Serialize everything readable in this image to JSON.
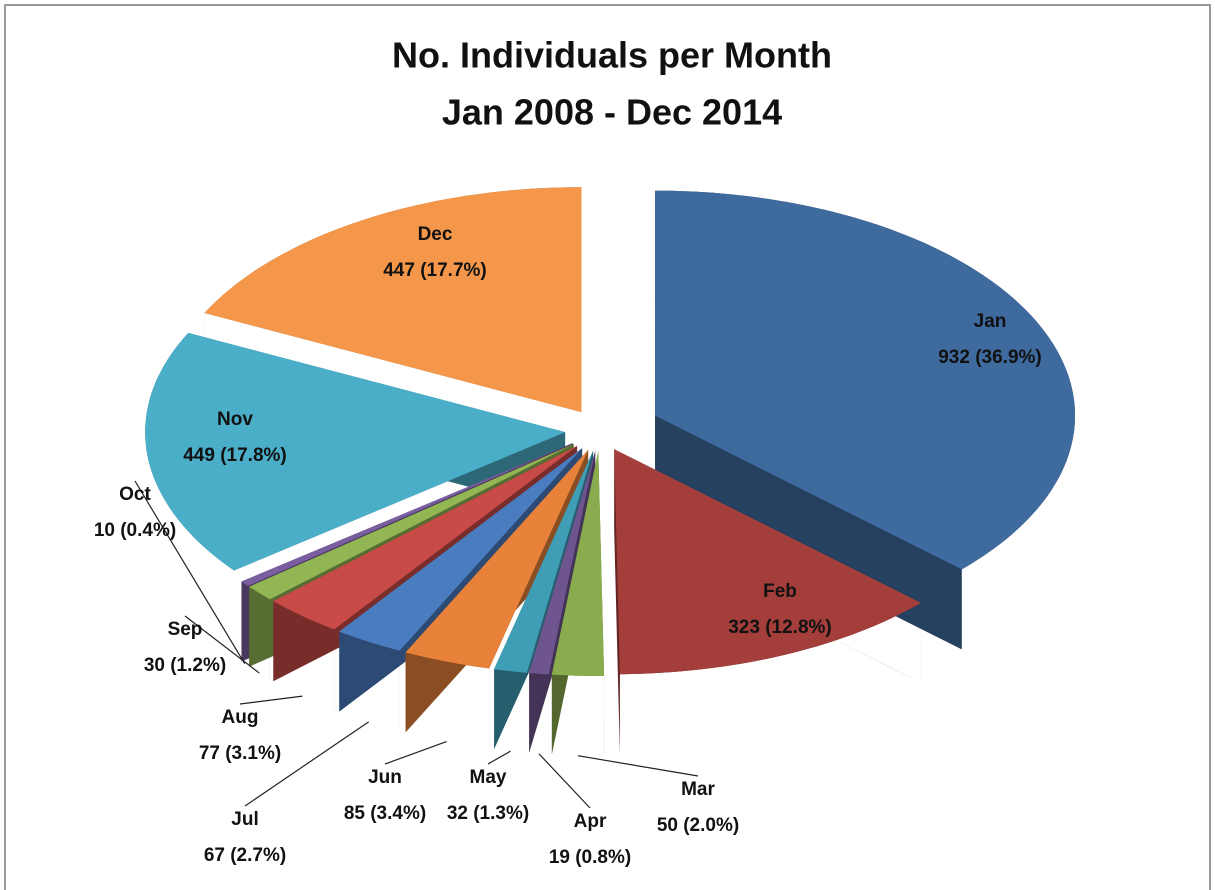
{
  "chart_data": {
    "type": "pie3d",
    "title": "No. Individuals per Month",
    "subtitle": "Jan 2008 - Dec 2014",
    "categories": [
      "Jan",
      "Feb",
      "Mar",
      "Apr",
      "May",
      "Jun",
      "Jul",
      "Aug",
      "Sep",
      "Oct",
      "Nov",
      "Dec"
    ],
    "values": [
      932,
      323,
      50,
      19,
      32,
      85,
      67,
      77,
      30,
      10,
      449,
      447
    ],
    "value_labels": [
      "932 (36.9%)",
      "323 (12.8%)",
      "50 (2.0%)",
      "19 (0.8%)",
      "32 (1.3%)",
      "85 (3.4%)",
      "67 (2.7%)",
      "77 (3.1%)",
      "30 (1.2%)",
      "10 (0.4%)",
      "449 (17.8%)",
      "447 (17.7%)"
    ],
    "colors": [
      "#3f6a9e",
      "#a33e3b",
      "#8aac4e",
      "#6f5590",
      "#3f9db5",
      "#e8823a",
      "#4a7cc0",
      "#c84b48",
      "#92b654",
      "#7a5ea0",
      "#4aaec8",
      "#f5974a"
    ]
  }
}
